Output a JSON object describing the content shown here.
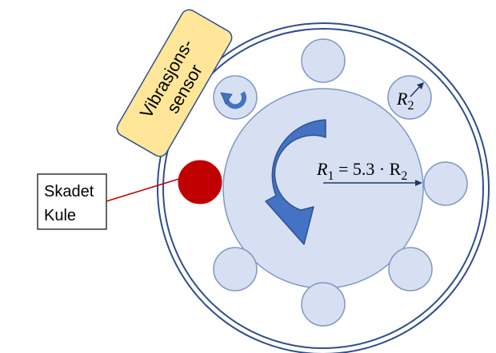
{
  "sensor": {
    "line1": "Vibrasjons-",
    "line2": "sensor"
  },
  "damaged_ball_box": {
    "line1": "Skadet",
    "line2": "Kule"
  },
  "radius_labels": {
    "r2": {
      "base": "R",
      "sub": "2"
    },
    "r1": {
      "base": "R",
      "sub": "1",
      "eq": " = 5.3 · R",
      "sub2": "2"
    }
  },
  "ball_count": 8,
  "colors": {
    "outer_ring": "#2f4d8f",
    "ball_fill": "#d6e0f2",
    "ball_stroke": "#7f97c4",
    "inner_race_fill": "#d6e0f2",
    "arrow_fill": "#4472c4",
    "arrow_stroke": "#2f528f",
    "damaged_ball": "#c00000",
    "sensor_fill": "#ffe699",
    "sensor_stroke": "#2f528f",
    "pointer_line": "#c00000",
    "radius_line": "#1f3864"
  }
}
